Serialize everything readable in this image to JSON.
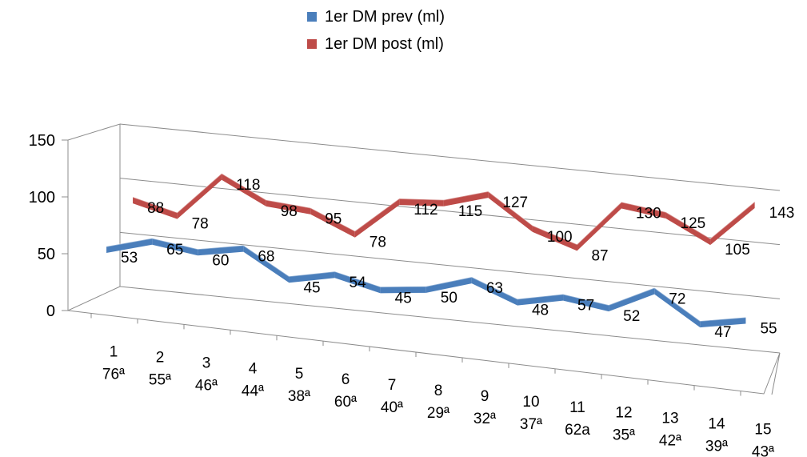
{
  "chart_data": {
    "type": "line",
    "title": "",
    "xlabel": "",
    "ylabel": "",
    "ylim": [
      0,
      150
    ],
    "yticks": [
      "0",
      "50",
      "100",
      "150"
    ],
    "grid": true,
    "legend_position": "top",
    "categories": [
      [
        "1",
        "76ª"
      ],
      [
        "2",
        "55ª"
      ],
      [
        "3",
        "46ª"
      ],
      [
        "4",
        "44ª"
      ],
      [
        "5",
        "38ª"
      ],
      [
        "6",
        "60ª"
      ],
      [
        "7",
        "40ª"
      ],
      [
        "8",
        "29ª"
      ],
      [
        "9",
        "32ª"
      ],
      [
        "10",
        "37ª"
      ],
      [
        "11",
        "62a"
      ],
      [
        "12",
        "35ª"
      ],
      [
        "13",
        "42ª"
      ],
      [
        "14",
        "39ª"
      ],
      [
        "15",
        "43ª"
      ]
    ],
    "series": [
      {
        "name": "1er DM prev (ml)",
        "color": "#4a7ebb",
        "values": [
          53,
          65,
          60,
          68,
          45,
          54,
          45,
          50,
          63,
          48,
          57,
          52,
          72,
          47,
          55
        ]
      },
      {
        "name": "1er DM post (ml)",
        "color": "#be4b48",
        "values": [
          88,
          78,
          118,
          98,
          95,
          78,
          112,
          115,
          127,
          100,
          87,
          130,
          125,
          105,
          143
        ]
      }
    ]
  }
}
